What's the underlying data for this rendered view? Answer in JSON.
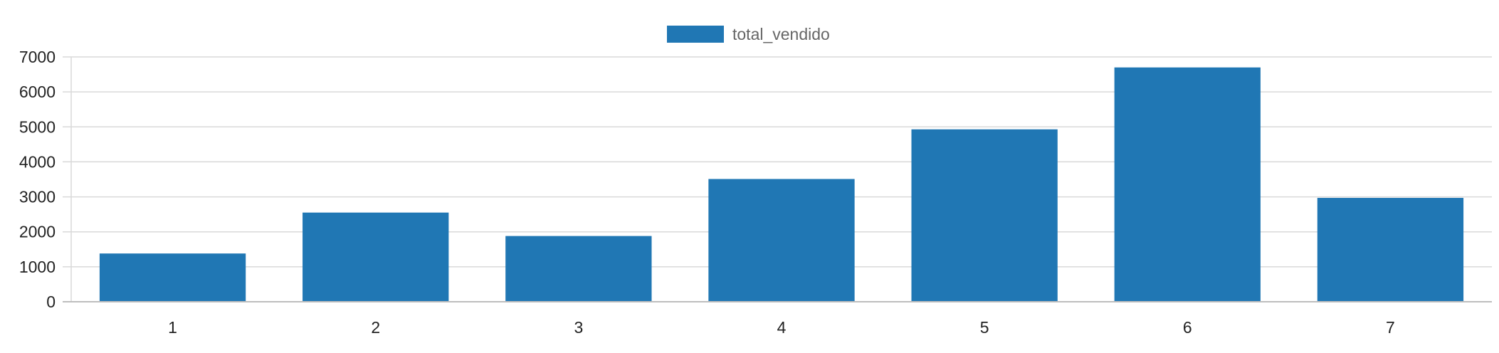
{
  "chart_data": {
    "type": "bar",
    "categories": [
      "1",
      "2",
      "3",
      "4",
      "5",
      "6",
      "7"
    ],
    "series": [
      {
        "name": "total_vendido",
        "color": "#2077b4",
        "values": [
          1380,
          2550,
          1880,
          3510,
          4930,
          6700,
          2970
        ]
      }
    ],
    "title": "",
    "xlabel": "",
    "ylabel": "",
    "ylim": [
      0,
      7000
    ],
    "yticks": [
      0,
      1000,
      2000,
      3000,
      4000,
      5000,
      6000,
      7000
    ],
    "grid": true,
    "legend_position": "top-center"
  }
}
